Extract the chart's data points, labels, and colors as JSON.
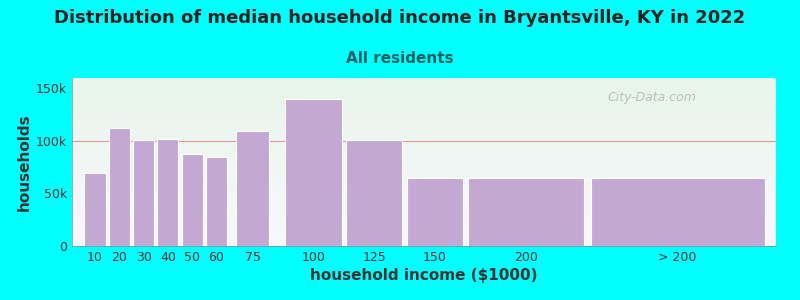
{
  "title": "Distribution of median household income in Bryantsville, KY in 2022",
  "subtitle": "All residents",
  "xlabel": "household income ($1000)",
  "ylabel": "households",
  "background_color": "#00FFFF",
  "plot_bg_top": "#e8f5e9",
  "plot_bg_bottom": "#f5f5ff",
  "bar_color": "#c4a8d4",
  "bar_edge_color": "#ffffff",
  "categories": [
    "10",
    "20",
    "30",
    "40",
    "50",
    "60",
    "75",
    "100",
    "125",
    "150",
    "200",
    "> 200"
  ],
  "values": [
    70000,
    112000,
    101000,
    102000,
    88000,
    85000,
    110000,
    140000,
    101000,
    65000,
    65000,
    65000
  ],
  "ylim": [
    0,
    160000
  ],
  "yticks": [
    0,
    50000,
    100000,
    150000
  ],
  "ytick_labels": [
    "0",
    "50k",
    "100k",
    "150k"
  ],
  "bar_lefts": [
    5,
    15,
    25,
    35,
    45,
    55,
    67.5,
    87.5,
    112.5,
    137.5,
    162.5,
    212.5
  ],
  "bar_widths": [
    9,
    9,
    9,
    9,
    9,
    9,
    14,
    24,
    24,
    24,
    49,
    74
  ],
  "title_fontsize": 13,
  "subtitle_fontsize": 11,
  "subtitle_color": "#006060",
  "axis_label_fontsize": 11,
  "tick_fontsize": 9,
  "watermark_text": "City-Data.com",
  "watermark_color": "#b0b0b0",
  "hline_color": "#e08080",
  "hline_y": 100000
}
